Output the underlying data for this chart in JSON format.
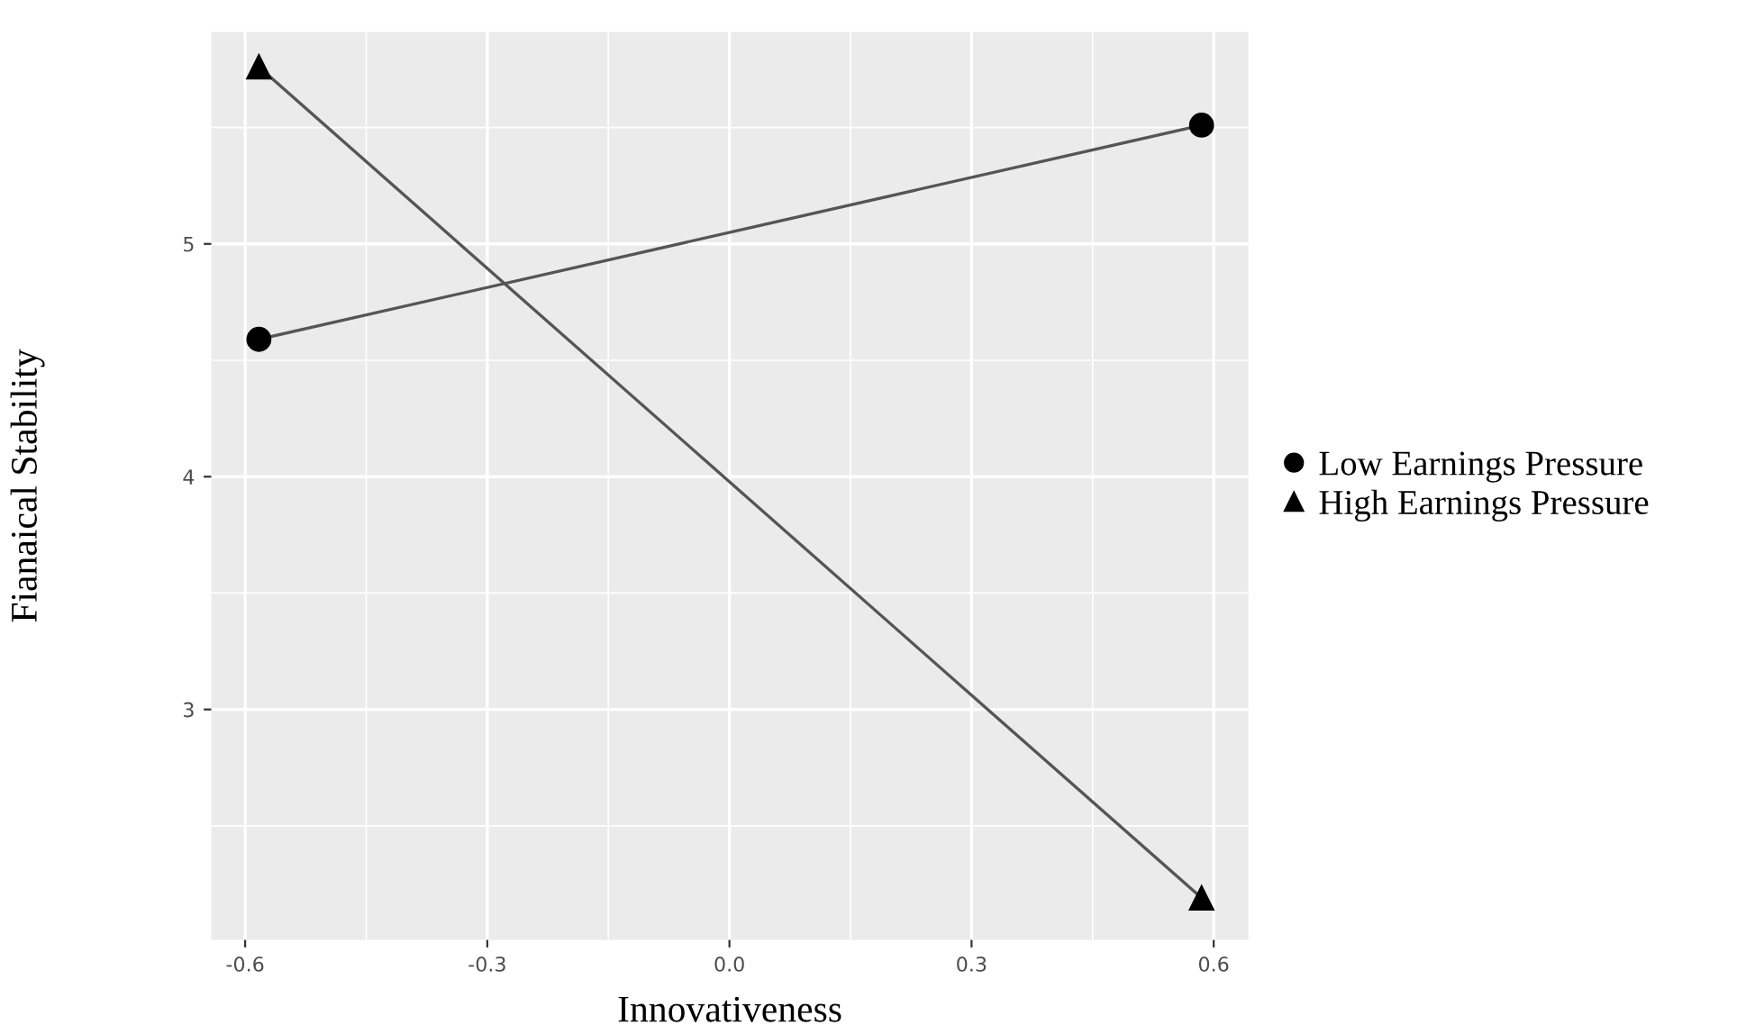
{
  "chart_data": {
    "type": "line",
    "xlabel": "Innovativeness",
    "ylabel": "Fianaical Stability",
    "x": [
      -0.583,
      0.585
    ],
    "series": [
      {
        "name": "Low Earnings Pressure",
        "color": "#000000",
        "values": [
          4.59,
          5.51
        ],
        "marker": "circle"
      },
      {
        "name": "High Earnings Pressure",
        "color": "#000000",
        "values": [
          5.76,
          2.19
        ],
        "marker": "triangle"
      }
    ],
    "xlim": [
      -0.642,
      0.643
    ],
    "ylim": [
      2.01,
      5.91
    ],
    "xticks": [
      {
        "value": -0.6,
        "label": "-0.6"
      },
      {
        "value": -0.3,
        "label": "-0.3"
      },
      {
        "value": 0.0,
        "label": "0.0"
      },
      {
        "value": 0.3,
        "label": "0.3"
      },
      {
        "value": 0.6,
        "label": "0.6"
      }
    ],
    "yticks": [
      3,
      4,
      5
    ],
    "grid": true,
    "legend": "right",
    "line_style": "solid"
  }
}
